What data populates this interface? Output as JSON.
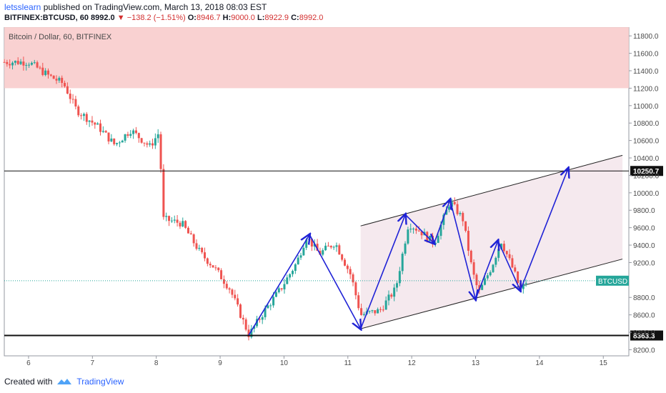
{
  "header": {
    "user": "letsslearn",
    "published_text": "published on TradingView.com, March 13, 2018 08:03 EST",
    "symbol": "BITFINEX:BTCUSD, 60",
    "last": "8992.0",
    "change": "−138.2 (−1.51%)",
    "o_label": "O:",
    "o_value": "8946.7",
    "h_label": "H:",
    "h_value": "9000.0",
    "l_label": "L:",
    "l_value": "8922.9",
    "c_label": "C:",
    "c_value": "8992.0"
  },
  "footer": {
    "created_with": "Created with",
    "brand": "TradingView"
  },
  "colors": {
    "up": "#26a69a",
    "down": "#ef5350",
    "arrow": "#1f22d6",
    "zone": "#f8c9c9",
    "channel": "#f5e9ee"
  },
  "chart_data": {
    "type": "candlestick",
    "title": "Bitcoin / Dollar, 60, BITFINEX",
    "ylim": [
      8130,
      11900
    ],
    "y_ticks": [
      "8200.0",
      "8400.0",
      "8600.0",
      "8800.0",
      "9000.0",
      "9200.0",
      "9400.0",
      "9600.0",
      "9800.0",
      "10000.0",
      "10200.0",
      "10400.0",
      "10600.0",
      "10800.0",
      "11000.0",
      "11200.0",
      "11400.0",
      "11600.0",
      "11800.0"
    ],
    "x_ticks": [
      {
        "x": 6,
        "label": "6"
      },
      {
        "x": 7,
        "label": "7"
      },
      {
        "x": 8,
        "label": "8"
      },
      {
        "x": 9,
        "label": "9"
      },
      {
        "x": 10,
        "label": "10"
      },
      {
        "x": 11,
        "label": "11"
      },
      {
        "x": 12,
        "label": "12"
      },
      {
        "x": 13,
        "label": "13"
      },
      {
        "x": 14,
        "label": "14"
      },
      {
        "x": 15,
        "label": "15"
      }
    ],
    "xlim": [
      5.62,
      15.4
    ],
    "resistance_zone": [
      11200,
      11900
    ],
    "levels": [
      {
        "price": 10250.7,
        "label": "10250.7",
        "thick": false
      },
      {
        "price": 8363.3,
        "label": "8363.3",
        "thick": true
      }
    ],
    "last_price": {
      "price": 8992.0,
      "label": "BTCUSD"
    },
    "channel": {
      "upper": [
        [
          11.2,
          9620
        ],
        [
          15.3,
          10430
        ]
      ],
      "lower": [
        [
          11.2,
          8440
        ],
        [
          15.3,
          9240
        ]
      ]
    },
    "path": [
      [
        6.0,
        11500
      ],
      [
        6.3,
        11350
      ],
      [
        6.55,
        11250
      ],
      [
        6.75,
        10950
      ],
      [
        7.1,
        10750
      ],
      [
        7.35,
        10550
      ],
      [
        7.6,
        10720
      ],
      [
        7.9,
        10530
      ],
      [
        8.05,
        10700
      ],
      [
        8.1,
        9700
      ],
      [
        8.4,
        9650
      ],
      [
        8.7,
        9300
      ],
      [
        8.9,
        9150
      ],
      [
        9.15,
        8900
      ],
      [
        9.45,
        8370
      ],
      [
        9.7,
        8650
      ],
      [
        9.95,
        8900
      ],
      [
        10.2,
        9200
      ],
      [
        10.35,
        9500
      ],
      [
        10.55,
        9300
      ],
      [
        10.8,
        9430
      ],
      [
        11.05,
        9050
      ],
      [
        11.2,
        8600
      ],
      [
        11.5,
        8650
      ],
      [
        11.75,
        8900
      ],
      [
        11.95,
        9650
      ],
      [
        12.15,
        9550
      ],
      [
        12.35,
        9420
      ],
      [
        12.6,
        9900
      ],
      [
        12.8,
        9700
      ],
      [
        12.95,
        9100
      ],
      [
        13.05,
        8850
      ],
      [
        13.25,
        9150
      ],
      [
        13.4,
        9450
      ],
      [
        13.6,
        9100
      ],
      [
        13.7,
        8880
      ],
      [
        13.8,
        8990
      ]
    ],
    "projection_arrows": [
      [
        9.45,
        8370,
        10.4,
        9520
      ],
      [
        10.4,
        9520,
        11.2,
        8440
      ],
      [
        11.2,
        8440,
        11.9,
        9750
      ],
      [
        11.9,
        9750,
        12.35,
        9420
      ],
      [
        12.35,
        9420,
        12.6,
        9920
      ],
      [
        12.6,
        9920,
        13.0,
        8780
      ],
      [
        13.0,
        8780,
        13.35,
        9450
      ],
      [
        13.35,
        9450,
        13.7,
        8880
      ],
      [
        13.7,
        8880,
        14.45,
        10280
      ]
    ]
  }
}
